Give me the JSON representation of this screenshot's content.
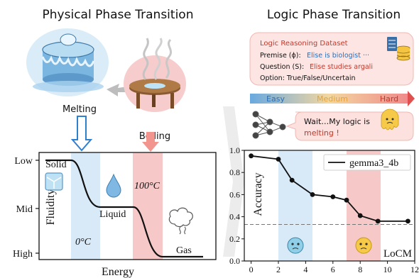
{
  "left": {
    "title": "Physical Phase Transition",
    "melting_label": "Melting",
    "boiling_label": "Boiling",
    "y_axis_label": "Fluidity",
    "x_axis_label": "Energy",
    "y_ticks": [
      "Low",
      "Mid",
      "High"
    ],
    "states": {
      "solid": "Solid",
      "liquid": "Liquid",
      "gas": "Gas"
    },
    "temp_zero": "0°C",
    "temp_hundred": "100°C",
    "colors": {
      "melt_band": "#d8e9f7",
      "boil_band": "#f6c8c8",
      "melt_arrow": "#2f7fcf",
      "boil_arrow": "#f2958e"
    }
  },
  "right": {
    "title": "Logic Phase Transition",
    "dataset": {
      "title": "Logic Reasoning Dataset",
      "premise_label": "Premise (ϕ):",
      "premise_value": "Elise is biologist ···",
      "question_label": "Question (S):",
      "question_value": "Elise studies argali",
      "option_line": "Option: True/False/Uncertain"
    },
    "difficulty": {
      "easy": "Easy",
      "medium": "Medium",
      "hard": "Hard"
    },
    "bubble_line1": "Wait…My logic is",
    "bubble_line2": "melting !"
  },
  "chart_data": {
    "type": "line",
    "series": [
      {
        "name": "gemma3_4b",
        "x": [
          0,
          2,
          3,
          4.5,
          6,
          7,
          8,
          9.3,
          11.5
        ],
        "y": [
          0.95,
          0.92,
          0.73,
          0.6,
          0.58,
          0.55,
          0.41,
          0.36,
          0.36
        ]
      }
    ],
    "ylabel": "Accuracy",
    "xlim": [
      -0.5,
      12
    ],
    "ylim": [
      0.0,
      1.0
    ],
    "xticks": [
      0,
      2,
      4,
      6,
      8,
      10,
      12
    ],
    "yticks": [
      0.0,
      0.2,
      0.4,
      0.6,
      0.8,
      1.0
    ],
    "xtick_labels": [
      "0",
      "2",
      "4",
      "6",
      "8",
      "10",
      "12"
    ],
    "ytick_labels": [
      "0.0",
      "0.2",
      "0.4",
      "0.6",
      "0.8",
      "1.0"
    ],
    "baseline_y": 0.33,
    "melt_band": [
      2,
      4.5
    ],
    "boil_band": [
      7,
      9.5
    ],
    "annotation": "LoCM",
    "legend_position": "top-right"
  }
}
